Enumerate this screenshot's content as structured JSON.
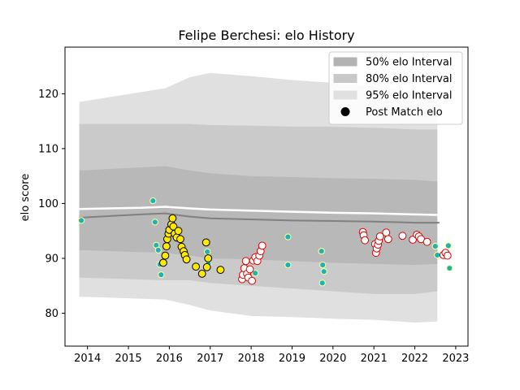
{
  "chart_data": {
    "type": "scatter",
    "title": "Felipe Berchesi: elo History",
    "xlabel": "",
    "ylabel": "elo score",
    "xlim": [
      2013.45,
      2023.3
    ],
    "ylim": [
      74,
      128.5
    ],
    "x_ticks": [
      2014,
      2015,
      2016,
      2017,
      2018,
      2019,
      2020,
      2021,
      2022,
      2023
    ],
    "y_ticks": [
      80,
      90,
      100,
      110,
      120
    ],
    "grid": false,
    "legend_position": "top-right",
    "colors": {
      "band_50": "#b3b3b3",
      "band_80": "#c8c8c8",
      "band_95": "#e0e0e0",
      "line_dark": "#808080",
      "line_white": "#ffffff",
      "marker_yellow": "#ffea00",
      "marker_white": "#ffffff",
      "marker_red_edge": "#e00000",
      "marker_teal": "#20b2b2",
      "marker_teal_edge": "#ffffa0",
      "marker_black_edge": "#000000"
    },
    "legend": [
      {
        "label": "50% elo Interval",
        "kind": "patch",
        "color": "#b3b3b3"
      },
      {
        "label": "80% elo Interval",
        "kind": "patch",
        "color": "#c8c8c8"
      },
      {
        "label": "95% elo Interval",
        "kind": "patch",
        "color": "#e0e0e0"
      },
      {
        "label": "Post Match elo",
        "kind": "marker",
        "color": "#000000"
      }
    ],
    "bands": {
      "x": [
        2013.8,
        2015.9,
        2016.5,
        2017.0,
        2018.0,
        2019.0,
        2020.0,
        2021.0,
        2022.0,
        2022.55
      ],
      "p95_upper": [
        118.5,
        121.0,
        123.0,
        123.8,
        123.2,
        122.5,
        122.0,
        121.3,
        120.3,
        119.5
      ],
      "p95_lower": [
        83.0,
        82.5,
        81.5,
        80.5,
        79.5,
        79.3,
        79.0,
        78.8,
        78.3,
        78.5
      ],
      "p80_upper": [
        114.5,
        114.5,
        114.5,
        114.3,
        114.2,
        114.0,
        114.0,
        113.8,
        113.5,
        113.5
      ],
      "p80_lower": [
        86.5,
        86.0,
        86.0,
        85.5,
        85.0,
        84.5,
        84.0,
        83.5,
        83.5,
        84.0
      ],
      "p50_upper": [
        106.0,
        106.8,
        106.0,
        105.5,
        105.0,
        104.8,
        104.6,
        104.5,
        104.3,
        104.0
      ],
      "p50_lower": [
        91.5,
        91.0,
        90.5,
        90.0,
        89.8,
        89.5,
        89.2,
        89.0,
        88.8,
        89.0
      ]
    },
    "series": [
      {
        "kind": "line",
        "style": "dark",
        "x": [
          2013.8,
          2014.5,
          2015.3,
          2015.9,
          2016.5,
          2017.0,
          2018.0,
          2019.0,
          2020.0,
          2021.0,
          2022.0,
          2022.6
        ],
        "y": [
          97.4,
          97.7,
          98.0,
          98.2,
          97.6,
          97.3,
          97.1,
          96.9,
          96.8,
          96.7,
          96.5,
          96.5
        ]
      },
      {
        "kind": "line",
        "style": "white",
        "x": [
          2013.8,
          2014.5,
          2015.3,
          2015.9,
          2016.5,
          2017.0,
          2018.0,
          2019.0,
          2020.0,
          2021.0,
          2022.0,
          2022.6
        ],
        "y": [
          99.0,
          99.1,
          99.2,
          99.4,
          99.1,
          98.9,
          98.7,
          98.5,
          98.3,
          98.2,
          98.0,
          97.9
        ]
      },
      {
        "kind": "points",
        "style": "teal",
        "x": [
          2013.85,
          2015.6,
          2015.65,
          2015.68,
          2015.73,
          2015.77,
          2015.8,
          2016.93,
          2016.95,
          2018.1,
          2018.9,
          2018.9,
          2019.72,
          2019.75,
          2019.78,
          2019.74,
          2022.5,
          2022.55,
          2022.82,
          2022.85
        ],
        "y": [
          96.9,
          100.5,
          96.6,
          92.4,
          91.5,
          88.9,
          87.0,
          91.2,
          89.0,
          87.3,
          93.9,
          88.8,
          91.3,
          88.8,
          87.6,
          85.5,
          92.2,
          90.6,
          92.3,
          88.2
        ]
      },
      {
        "kind": "points",
        "style": "yellow",
        "x": [
          2015.85,
          2015.9,
          2015.93,
          2015.95,
          2015.98,
          2016.0,
          2016.05,
          2016.08,
          2016.1,
          2016.13,
          2016.18,
          2016.22,
          2016.27,
          2016.3,
          2016.35,
          2016.38,
          2016.42,
          2016.65,
          2016.8,
          2016.9,
          2016.92,
          2016.95,
          2017.25
        ],
        "y": [
          89.2,
          90.5,
          92.2,
          93.5,
          94.5,
          95.2,
          96.2,
          97.3,
          95.8,
          94.5,
          93.8,
          95.0,
          93.5,
          92.1,
          91.3,
          90.6,
          89.8,
          88.5,
          87.2,
          92.9,
          88.4,
          90.0,
          87.9
        ]
      },
      {
        "kind": "points",
        "style": "white-red",
        "x": [
          2017.78,
          2017.8,
          2017.83,
          2017.87,
          2017.9,
          2017.93,
          2017.97,
          2018.02,
          2018.05,
          2018.1,
          2018.15,
          2018.2,
          2018.23,
          2018.27,
          2020.73,
          2020.75,
          2020.78,
          2021.03,
          2021.05,
          2021.07,
          2021.1,
          2021.12,
          2021.15,
          2021.3,
          2021.35,
          2021.7,
          2021.95,
          2022.05,
          2022.1,
          2022.15,
          2022.3,
          2022.7,
          2022.75,
          2022.8
        ],
        "y": [
          86.2,
          87.0,
          88.2,
          89.5,
          87.2,
          86.5,
          88.0,
          85.9,
          89.6,
          90.2,
          89.5,
          90.5,
          91.3,
          92.3,
          94.8,
          94.2,
          93.3,
          92.6,
          91.0,
          91.8,
          92.5,
          93.2,
          94.0,
          94.7,
          93.5,
          94.1,
          93.4,
          94.3,
          94.0,
          93.5,
          93.0,
          90.6,
          91.0,
          90.5
        ]
      }
    ]
  }
}
